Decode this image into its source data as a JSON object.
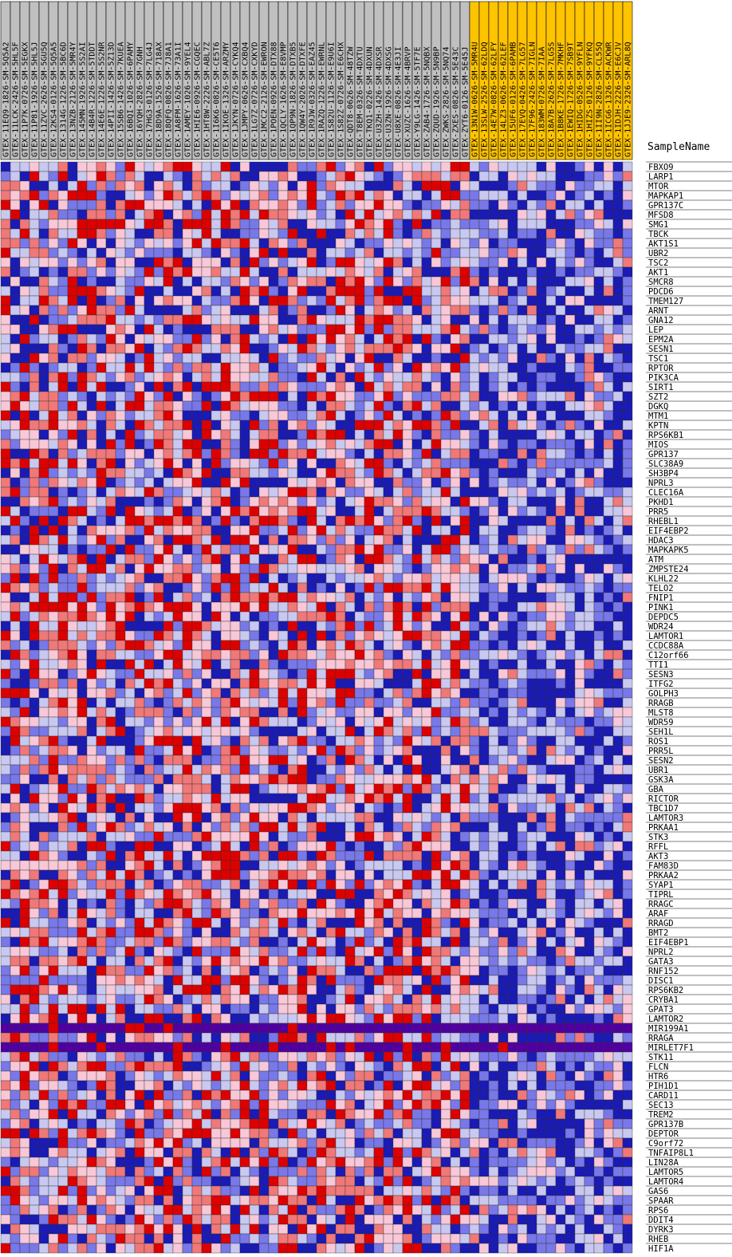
{
  "chart_data": {
    "type": "heatmap",
    "column_header": "SampleName",
    "colors": {
      "high": "#dd0000",
      "mid_high": "#f07878",
      "low_high": "#f8c8d8",
      "low_low": "#c8c8f0",
      "mid_low": "#7878e8",
      "low": "#1a1ab4",
      "extreme_low": "#5000a0",
      "group_b_label_bg": "#ffc400",
      "group_a_label_bg": "#c0c0c0",
      "grid": "#000000"
    },
    "columns": [
      {
        "name": "GTEX-11EQ9-1826-SM-5Q5A2",
        "group": "A"
      },
      {
        "name": "GTEX-11LCK-2426-SM-5HL5F",
        "group": "A"
      },
      {
        "name": "GTEX-11P7K-0726-SM-5EGKX",
        "group": "A"
      },
      {
        "name": "GTEX-11P81-1926-SM-5HL5J",
        "group": "A"
      },
      {
        "name": "GTEX-11ZVC-2626-SM-5GU5Q",
        "group": "A"
      },
      {
        "name": "GTEX-12KS4-0126-SM-5Q5A5",
        "group": "A"
      },
      {
        "name": "GTEX-1314G-1226-SM-5BC6D",
        "group": "A"
      },
      {
        "name": "GTEX-13NZB-2126-SM-5MR4Y",
        "group": "A"
      },
      {
        "name": "GTEX-145MN-1926-SM-5S2AI",
        "group": "A"
      },
      {
        "name": "GTEX-14B4R-1226-SM-5TDDT",
        "group": "A"
      },
      {
        "name": "GTEX-14E6E-1226-SM-5S2NR",
        "group": "A"
      },
      {
        "name": "GTEX-14PII-1426-SM-5Z13D",
        "group": "A"
      },
      {
        "name": "GTEX-15SB6-1426-SM-7KUEA",
        "group": "A"
      },
      {
        "name": "GTEX-16BQI-1026-SM-6PAMY",
        "group": "A"
      },
      {
        "name": "GTEX-16YQH-2826-SM-7GNH",
        "group": "A"
      },
      {
        "name": "GTEX-17HG3-0126-SM-7LG4J",
        "group": "A"
      },
      {
        "name": "GTEX-18D9A-1526-SM-718AX",
        "group": "A"
      },
      {
        "name": "GTEX-18QFQ-0826-SM-7J8A1",
        "group": "A"
      },
      {
        "name": "GTEX-1A8FM-1626-SM-73A1I",
        "group": "A"
      },
      {
        "name": "GTEX-1AMEY-1026-SM-9YEL4",
        "group": "A"
      },
      {
        "name": "GTEX-1HIE6-0926-SM-CGQEC",
        "group": "A"
      },
      {
        "name": "GTEX-1HT8W-2226-SM-ABL7Z",
        "group": "A"
      },
      {
        "name": "GTEX-1I6K6-0826-SM-CE5T6",
        "group": "A"
      },
      {
        "name": "GTEX-1IKOE-1326-SM-ARZMY",
        "group": "A"
      },
      {
        "name": "GTEX-1JKYN-0726-SM-CYKQ4",
        "group": "A"
      },
      {
        "name": "GTEX-1JMPY-0626-SM-CXBQ4",
        "group": "A"
      },
      {
        "name": "GTEX-1LG7Z-0726-SM-CXKYD",
        "group": "A"
      },
      {
        "name": "GTEX-1MCC2-2126-SM-EWRON",
        "group": "A"
      },
      {
        "name": "GTEX-1POEN-0926-SM-DTX88",
        "group": "A"
      },
      {
        "name": "GTEX-1QCLY-1626-SM-E8VMP",
        "group": "A"
      },
      {
        "name": "GTEX-1QP9N-1826-SM-DTXB5",
        "group": "A"
      },
      {
        "name": "GTEX-1QW4Y-2026-SM-DTXFE",
        "group": "A"
      },
      {
        "name": "GTEX-1R9JW-0326-SM-EAZ45",
        "group": "A"
      },
      {
        "name": "GTEX-1RAZQ-1226-SM-EWRNL",
        "group": "A"
      },
      {
        "name": "GTEX-1S82U-1126-SM-E9U6I",
        "group": "A"
      },
      {
        "name": "GTEX-1S82Z-0726-SM-E6CHX",
        "group": "A"
      },
      {
        "name": "GTEX-QDT8-0626-SM-48TZW",
        "group": "A"
      },
      {
        "name": "GTEX-T8EM-0326-SM-4DXTU",
        "group": "A"
      },
      {
        "name": "GTEX-TKQ1-0226-SM-4DXUN",
        "group": "A"
      },
      {
        "name": "GTEX-U3ZH-1426-SM-4DXSR",
        "group": "A"
      },
      {
        "name": "GTEX-U3ZN-1926-SM-4DXSG",
        "group": "A"
      },
      {
        "name": "GTEX-U8XE-0826-SM-4E3JI",
        "group": "A"
      },
      {
        "name": "GTEX-XUZC-1626-SM-4BRVP",
        "group": "A"
      },
      {
        "name": "GTEX-Y9LG-1426-SM-5TF7E",
        "group": "A"
      },
      {
        "name": "GTEX-ZAB4-1726-SM-5NQBX",
        "group": "A"
      },
      {
        "name": "GTEX-ZQUD-1926-SM-5N9BP",
        "group": "A"
      },
      {
        "name": "GTEX-ZWKS-2826-SM-5NQ74",
        "group": "A"
      },
      {
        "name": "GTEX-ZXES-0826-SM-5E43C",
        "group": "A"
      },
      {
        "name": "GTEX-ZYT6-0126-SM-5E45J",
        "group": "A"
      },
      {
        "name": "GTEX-13N1W-0626-SM-5MR4U",
        "group": "B"
      },
      {
        "name": "GTEX-13SLW-2526-SM-62LDQ",
        "group": "B"
      },
      {
        "name": "GTEX-14E7W-0826-SM-62LFY",
        "group": "B"
      },
      {
        "name": "GTEX-14LZ3-0626-SM-62LEF",
        "group": "B"
      },
      {
        "name": "GTEX-15UF6-0126-SM-6PAMB",
        "group": "B"
      },
      {
        "name": "GTEX-17EVQ-0426-SM-7LG57",
        "group": "B"
      },
      {
        "name": "GTEX-17F96-2426-SM-7IGLN",
        "group": "B"
      },
      {
        "name": "GTEX-183WM-0726-SM-7IAA",
        "group": "B"
      },
      {
        "name": "GTEX-18A7B-2626-SM-7LG5S",
        "group": "B"
      },
      {
        "name": "GTEX-1B8KE-1726-SM-7MKHF",
        "group": "B"
      },
      {
        "name": "GTEX-1EWIQ-1726-SM-7SB9T",
        "group": "B"
      },
      {
        "name": "GTEX-1HIDG-0526-SM-9YFLN",
        "group": "B"
      },
      {
        "name": "GTEX-1HIZS-0126-SM-9YFKQ",
        "group": "B"
      },
      {
        "name": "GTEX-1II9N-2826-SM-CL55Q",
        "group": "B"
      },
      {
        "name": "GTEX-1ICG6-1326-SM-ACKWR",
        "group": "B"
      },
      {
        "name": "GTEX-1IDJH-2226-SM-E6CJV",
        "group": "B"
      },
      {
        "name": "GTEX-1JJE9-2326-SM-ARL8Q",
        "group": "B"
      }
    ],
    "rows": [
      "FBXO9",
      "LARP1",
      "MTOR",
      "MAPKAP1",
      "GPR137C",
      "MFSD8",
      "SMG1",
      "TBCK",
      "AKT1S1",
      "UBR2",
      "TSC2",
      "AKT1",
      "SMCR8",
      "PDCD6",
      "TMEM127",
      "ARNT",
      "GNA12",
      "LEP",
      "EPM2A",
      "SESN1",
      "TSC1",
      "RPTOR",
      "PIK3CA",
      "SIRT1",
      "SZT2",
      "DGKQ",
      "MTM1",
      "KPTN",
      "RPS6KB1",
      "MIOS",
      "GPR137",
      "SLC38A9",
      "SH3BP4",
      "NPRL3",
      "CLEC16A",
      "PKHD1",
      "PRR5",
      "RHEBL1",
      "EIF4EBP2",
      "HDAC3",
      "MAPKAPK5",
      "ATM",
      "ZMPSTE24",
      "KLHL22",
      "TELO2",
      "FNIP1",
      "PINK1",
      "DEPDC5",
      "WDR24",
      "LAMTOR1",
      "CCDC88A",
      "C12orf66",
      "TTI1",
      "SESN3",
      "ITFG2",
      "GOLPH3",
      "RRAGB",
      "MLST8",
      "WDR59",
      "SEH1L",
      "ROS1",
      "PRR5L",
      "SESN2",
      "UBR1",
      "GSK3A",
      "GBA",
      "RICTOR",
      "TBC1D7",
      "LAMTOR3",
      "PRKAA1",
      "STK3",
      "RFFL",
      "AKT3",
      "FAM83D",
      "PRKAA2",
      "SYAP1",
      "TIPRL",
      "RRAGC",
      "ARAF",
      "RRAGD",
      "BMT2",
      "EIF4EBP1",
      "NPRL2",
      "GATA3",
      "RNF152",
      "DISC1",
      "RPS6KB2",
      "CRYBA1",
      "GPAT3",
      "LAMTOR2",
      "MIR199A1",
      "RRAGA",
      "MIRLET7F1",
      "STK11",
      "FLCN",
      "HTR6",
      "PIH1D1",
      "CARD11",
      "SEC13",
      "TREM2",
      "GPR137B",
      "DEPTOR",
      "C9orf72",
      "TNFAIP8L1",
      "LIN28A",
      "LAMTOR5",
      "LAMTOR4",
      "GAS6",
      "SPAAR",
      "RPS6",
      "DDIT4",
      "DYRK3",
      "RHEB",
      "HIF1A"
    ],
    "scale_note": "",
    "dark_rows": [
      "MIR199A1",
      "MIRLET7F1"
    ]
  }
}
